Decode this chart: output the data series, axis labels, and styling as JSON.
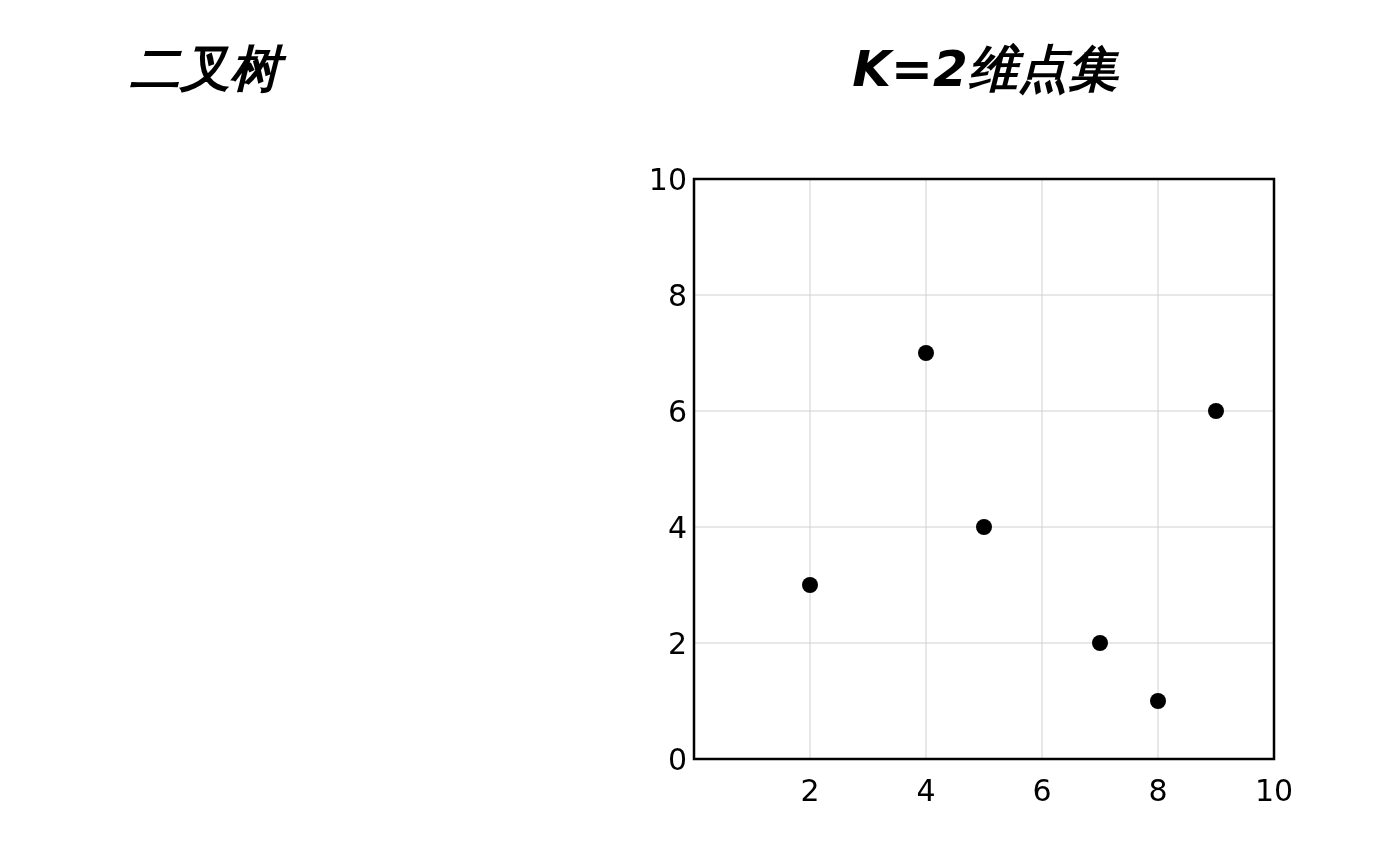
{
  "chart_data": {
    "type": "scatter",
    "title": "K=2维点集",
    "annotations": [
      "二叉树"
    ],
    "x": [
      2,
      4,
      5,
      7,
      8,
      9
    ],
    "series": [
      {
        "color": "#000000",
        "values": [
          3,
          7,
          4,
          2,
          1,
          6
        ]
      }
    ],
    "xlim": [
      0,
      10
    ],
    "ylim": [
      0,
      10
    ],
    "xticks": [
      2,
      4,
      6,
      8,
      10
    ],
    "yticks": [
      0,
      2,
      4,
      6,
      8,
      10
    ],
    "grid": true,
    "marker": "circle"
  }
}
